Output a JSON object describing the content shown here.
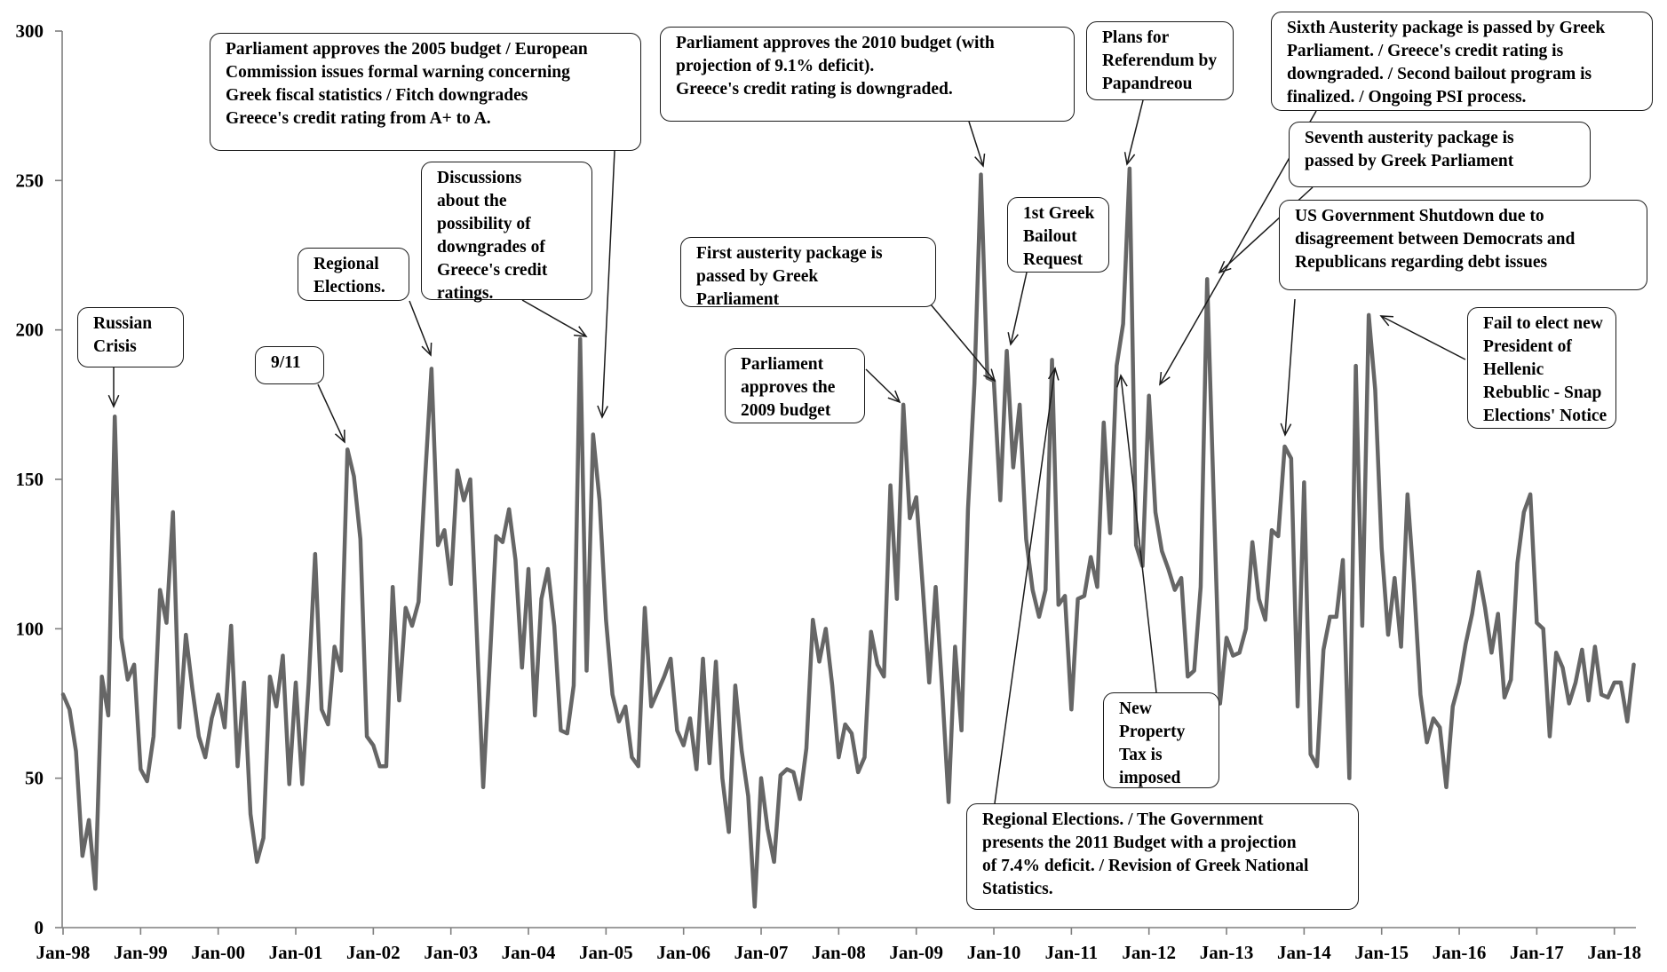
{
  "chart_data": {
    "type": "line",
    "title": "",
    "xlabel": "",
    "ylabel": "",
    "ylim": [
      0,
      300
    ],
    "y_ticks": [
      "0",
      "50",
      "100",
      "150",
      "200",
      "250",
      "300"
    ],
    "x_ticks": [
      "Jan-98",
      "Jan-99",
      "Jan-00",
      "Jan-01",
      "Jan-02",
      "Jan-03",
      "Jan-04",
      "Jan-05",
      "Jan-06",
      "Jan-07",
      "Jan-08",
      "Jan-09",
      "Jan-10",
      "Jan-11",
      "Jan-12",
      "Jan-13",
      "Jan-14",
      "Jan-15",
      "Jan-16",
      "Jan-17",
      "Jan-18"
    ],
    "grid": false,
    "legend": "none",
    "series_color": "#666666",
    "series": [
      {
        "start": "Jan-98",
        "frequency": "monthly",
        "values": [
          78,
          73,
          59,
          24,
          36,
          13,
          84,
          71,
          171,
          97,
          83,
          88,
          53,
          49,
          64,
          113,
          102,
          139,
          67,
          98,
          80,
          64,
          57,
          70,
          78,
          67,
          101,
          54,
          82,
          38,
          22,
          30,
          84,
          74,
          91,
          48,
          82,
          48,
          82,
          125,
          73,
          68,
          94,
          86,
          160,
          151,
          130,
          64,
          61,
          54,
          54,
          114,
          76,
          107,
          101,
          109,
          150,
          187,
          128,
          133,
          115,
          153,
          143,
          150,
          99,
          47,
          88,
          131,
          129,
          140,
          123,
          87,
          120,
          71,
          110,
          120,
          101,
          66,
          65,
          81,
          197,
          86,
          165,
          143,
          103,
          78,
          69,
          74,
          57,
          54,
          107,
          74,
          79,
          84,
          90,
          66,
          61,
          70,
          53,
          90,
          55,
          89,
          50,
          32,
          81,
          59,
          44,
          7,
          50,
          33,
          22,
          51,
          53,
          52,
          43,
          60,
          103,
          89,
          100,
          81,
          57,
          68,
          65,
          52,
          57,
          99,
          88,
          84,
          148,
          110,
          175,
          137,
          144,
          114,
          82,
          114,
          80,
          42,
          94,
          66,
          140,
          182,
          252,
          184,
          183,
          143,
          193,
          154,
          175,
          130,
          113,
          104,
          113,
          190,
          108,
          111,
          73,
          110,
          111,
          124,
          114,
          169,
          132,
          188,
          202,
          254,
          128,
          121,
          178,
          139,
          126,
          120,
          113,
          117,
          84,
          86,
          114,
          217,
          145,
          75,
          97,
          91,
          92,
          100,
          129,
          110,
          103,
          133,
          131,
          161,
          157,
          74,
          149,
          58,
          54,
          93,
          104,
          104,
          123,
          50,
          188,
          101,
          205,
          180,
          127,
          98,
          117,
          94,
          145,
          115,
          78,
          62,
          70,
          67,
          47,
          74,
          82,
          95,
          105,
          119,
          107,
          92,
          105,
          77,
          83,
          122,
          139,
          145,
          102,
          100,
          64,
          92,
          87,
          75,
          82,
          93,
          76,
          94,
          78,
          77,
          82,
          82,
          69,
          88
        ]
      }
    ],
    "annotations": [
      {
        "text": "Russian\nCrisis",
        "target": "Sep-98"
      },
      {
        "text": "9/11",
        "target": "Oct-01"
      },
      {
        "text": "Regional\nElections.",
        "target": "Nov-02"
      },
      {
        "text": "Parliament approves the 2005 budget / European\nCommission issues formal warning concerning\nGreek fiscal statistics / Fitch downgrades\nGreece's credit rating from A+ to A.",
        "target": "Jan-05"
      },
      {
        "text": "Discussions\nabout the\npossibility of\ndowngrades of\nGreece's credit\nratings.",
        "target": "Nov-04"
      },
      {
        "text": "Parliament\napproves the\n2009 budget",
        "target": "Nov-08"
      },
      {
        "text": "First austerity package is\npassed by Greek\nParliament",
        "target": "Mar-10"
      },
      {
        "text": "Parliament approves the 2010 budget (with\nprojection of 9.1% deficit).\nGreece's credit rating is downgraded.",
        "target": "Dec-09"
      },
      {
        "text": "1st Greek\nBailout\nRequest",
        "target": "Apr-10"
      },
      {
        "text": "Plans for\nReferendum by\nPapandreou",
        "target": "Nov-11"
      },
      {
        "text": "Sixth Austerity package is passed by Greek\nParliament. / Greece's  credit rating is\ndowngraded. / Second bailout program is\nfinalized. / Ongoing PSI process.",
        "target": "Feb-12"
      },
      {
        "text": "Seventh austerity package is\npassed by Greek  Parliament",
        "target": "Nov-12"
      },
      {
        "text": "US Government Shutdown due to\ndisagreement between Democrats and\nRepublicans regarding debt issues",
        "target": "Oct-13"
      },
      {
        "text": "Fail to elect new\nPresident of\nHellenic\nRebublic - Snap\nElections' Notice",
        "target": "Dec-14"
      },
      {
        "text": "New\nProperty\nTax is\nimposed",
        "target": "Oct-11"
      },
      {
        "text": "Regional Elections. / The Government\npresents the 2011 Budget with a projection\nof 7.4% deficit. / Revision of Greek National\nStatistics.",
        "target": "Nov-10"
      }
    ]
  }
}
